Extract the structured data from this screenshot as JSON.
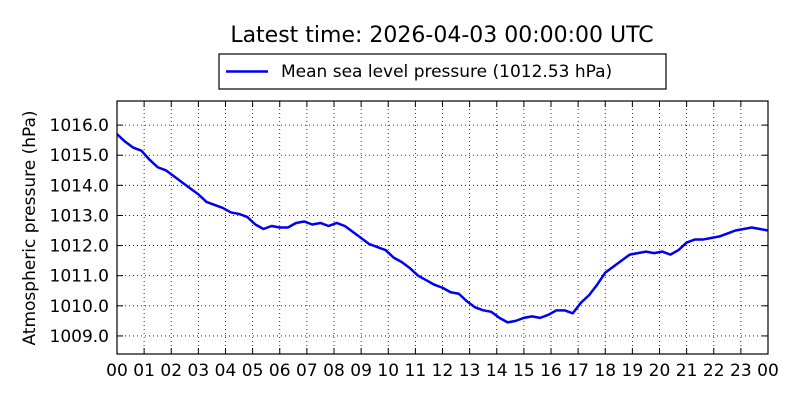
{
  "chart_data": {
    "type": "line",
    "title": "Latest time: 2026-04-03 00:00:00 UTC",
    "xlabel": "",
    "ylabel": "Atmospheric pressure (hPa)",
    "xlim": [
      0,
      24
    ],
    "ylim": [
      1008.4,
      1016.8
    ],
    "grid": true,
    "legend_placement": "top-center",
    "x_tick_labels": [
      "00",
      "01",
      "02",
      "03",
      "04",
      "05",
      "06",
      "07",
      "08",
      "09",
      "10",
      "11",
      "12",
      "13",
      "14",
      "15",
      "16",
      "17",
      "18",
      "19",
      "20",
      "21",
      "22",
      "23",
      "00"
    ],
    "y_ticks": [
      1009.0,
      1010.0,
      1011.0,
      1012.0,
      1013.0,
      1014.0,
      1015.0,
      1016.0
    ],
    "y_tick_labels": [
      "1009.0",
      "1010.0",
      "1011.0",
      "1012.0",
      "1013.0",
      "1014.0",
      "1015.0",
      "1016.0"
    ],
    "series": [
      {
        "name": "Mean sea level pressure (1012.53 hPa)",
        "color": "#0000ee",
        "x": [
          0,
          0.3,
          0.6,
          0.9,
          1.2,
          1.5,
          1.8,
          2.1,
          2.4,
          2.7,
          3.0,
          3.3,
          3.6,
          3.9,
          4.2,
          4.5,
          4.8,
          5.1,
          5.4,
          5.7,
          6.0,
          6.3,
          6.6,
          6.9,
          7.2,
          7.5,
          7.8,
          8.1,
          8.4,
          8.7,
          9.0,
          9.3,
          9.6,
          9.9,
          10.2,
          10.5,
          10.8,
          11.1,
          11.4,
          11.7,
          12.0,
          12.3,
          12.6,
          12.9,
          13.2,
          13.5,
          13.8,
          14.1,
          14.4,
          14.7,
          15.0,
          15.3,
          15.6,
          15.9,
          16.2,
          16.5,
          16.8,
          17.1,
          17.4,
          17.7,
          18.0,
          18.3,
          18.6,
          18.9,
          19.2,
          19.5,
          19.8,
          20.1,
          20.4,
          20.7,
          21.0,
          21.3,
          21.6,
          21.9,
          22.2,
          22.5,
          22.8,
          23.1,
          23.4,
          23.7,
          24.0
        ],
        "values": [
          1015.7,
          1015.45,
          1015.25,
          1015.15,
          1014.85,
          1014.6,
          1014.5,
          1014.3,
          1014.1,
          1013.9,
          1013.7,
          1013.45,
          1013.35,
          1013.25,
          1013.1,
          1013.05,
          1012.95,
          1012.7,
          1012.55,
          1012.65,
          1012.6,
          1012.6,
          1012.75,
          1012.8,
          1012.7,
          1012.75,
          1012.65,
          1012.75,
          1012.65,
          1012.45,
          1012.25,
          1012.05,
          1011.95,
          1011.85,
          1011.6,
          1011.45,
          1011.25,
          1011.0,
          1010.85,
          1010.7,
          1010.6,
          1010.45,
          1010.4,
          1010.15,
          1009.95,
          1009.85,
          1009.8,
          1009.6,
          1009.45,
          1009.5,
          1009.6,
          1009.65,
          1009.6,
          1009.7,
          1009.85,
          1009.85,
          1009.75,
          1010.1,
          1010.35,
          1010.7,
          1011.1,
          1011.3,
          1011.5,
          1011.7,
          1011.75,
          1011.8,
          1011.75,
          1011.8,
          1011.7,
          1011.85,
          1012.1,
          1012.2,
          1012.2,
          1012.25,
          1012.3,
          1012.4,
          1012.5,
          1012.55,
          1012.6,
          1012.55,
          1012.5
        ]
      }
    ]
  }
}
